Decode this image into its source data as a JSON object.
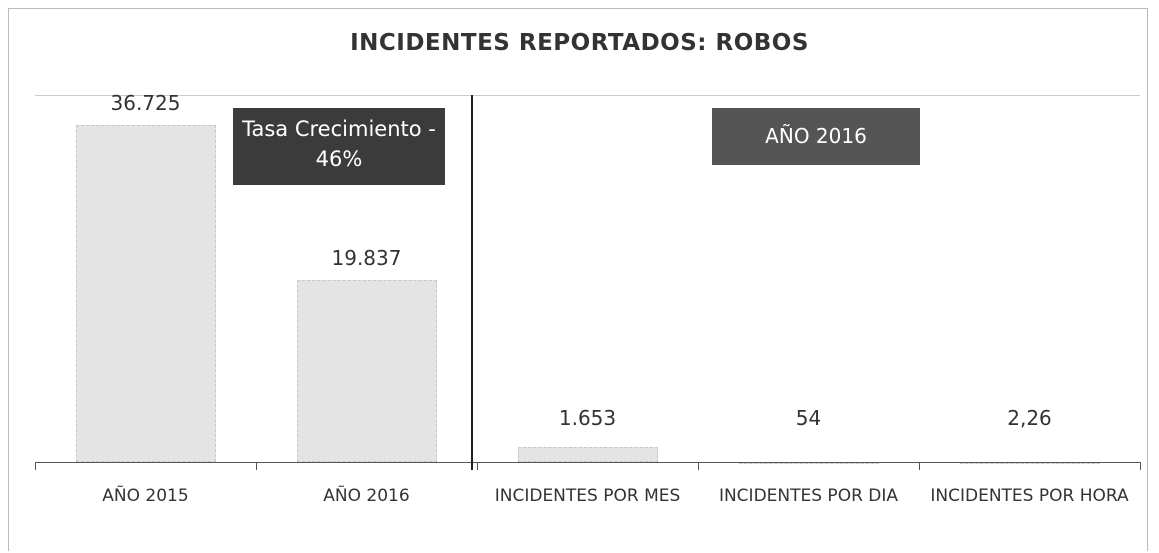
{
  "chart_data": {
    "type": "bar",
    "title": "INCIDENTES REPORTADOS: ROBOS",
    "categories": [
      "AÑO 2015",
      "AÑO 2016",
      "INCIDENTES POR MES",
      "INCIDENTES POR DIA",
      "INCIDENTES POR HORA"
    ],
    "values": [
      36725,
      19837,
      1653,
      54,
      2.26
    ],
    "value_labels": [
      "36.725",
      "19.837",
      "1.653",
      "54",
      "2,26"
    ],
    "color": "#e4e4e4",
    "ylim": [
      0,
      40000
    ],
    "annotations": [
      "Tasa Crecimiento - 46%",
      "AÑO 2016"
    ]
  }
}
